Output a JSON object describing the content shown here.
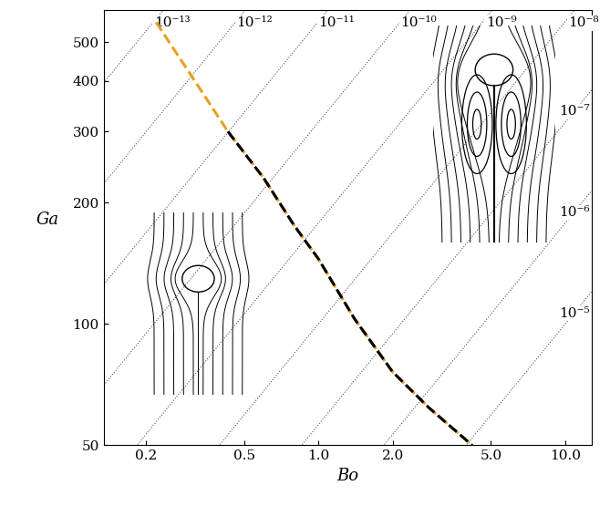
{
  "chart_data": {
    "type": "line",
    "xlabel": "Bo",
    "ylabel": "Ga",
    "log": true,
    "xlim": [
      0.135,
      12.8
    ],
    "ylim": [
      50,
      600
    ],
    "xticks": [
      0.2,
      0.5,
      1.0,
      2.0,
      5.0,
      10.0
    ],
    "yticks": [
      50,
      100,
      200,
      300,
      400,
      500
    ],
    "series": [
      {
        "color": "#e8a020",
        "line_style": "dashed",
        "x": [
          0.22,
          0.3,
          0.43,
          0.6,
          0.8,
          1.0,
          1.4,
          2.0,
          2.8,
          4.2
        ],
        "values": [
          560,
          420,
          300,
          230,
          175,
          145,
          103,
          76,
          62,
          50
        ]
      },
      {
        "color": "#000000",
        "line_style": "dashed",
        "x": [
          0.43,
          0.6,
          0.8,
          1.0,
          1.4,
          2.0,
          2.8,
          4.2
        ],
        "values": [
          300,
          230,
          175,
          145,
          103,
          76,
          62,
          50
        ]
      }
    ],
    "contours": [
      {
        "value": 1e-13,
        "label": "10⁻¹³"
      },
      {
        "value": 1e-12,
        "label": "10⁻¹²"
      },
      {
        "value": 1e-11,
        "label": "10⁻¹¹"
      },
      {
        "value": 1e-10,
        "label": "10⁻¹⁰"
      },
      {
        "value": 1e-09,
        "label": "10⁻⁹"
      },
      {
        "value": 1e-08,
        "label": "10⁻⁸"
      },
      {
        "value": 1e-07,
        "label": "10⁻⁷"
      },
      {
        "value": 1e-06,
        "label": "10⁻⁶"
      },
      {
        "value": 1e-05,
        "label": "10⁻⁵"
      }
    ]
  }
}
